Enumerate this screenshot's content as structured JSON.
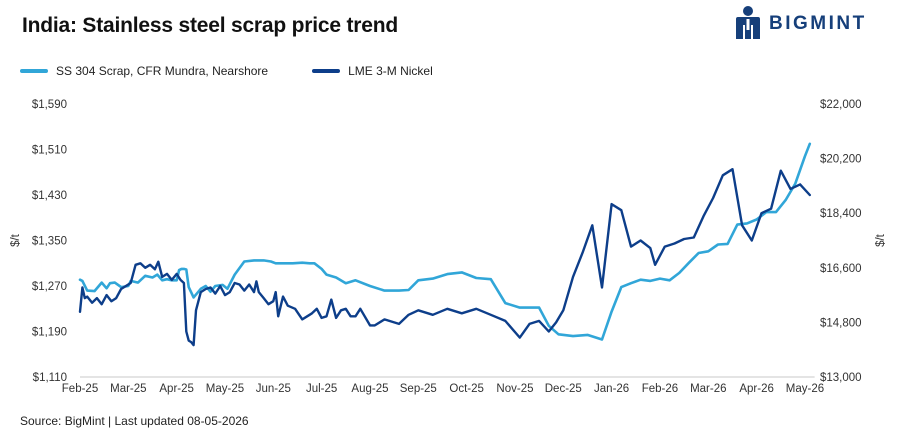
{
  "header": {
    "title": "India: Stainless steel scrap price trend",
    "logo_text": "BIGMINT",
    "logo_icon": "bigmint-person-icon"
  },
  "footer": {
    "source": "Source: BigMint | Last updated 08-05-2026"
  },
  "colors": {
    "scrap": "#31a6d8",
    "nickel": "#0d3e8a"
  },
  "chart_data": {
    "type": "line",
    "title": "India: Stainless steel scrap price trend",
    "x_tick_labels": [
      "Feb-25",
      "Mar-25",
      "Apr-25",
      "May-25",
      "Jun-25",
      "Jul-25",
      "Aug-25",
      "Sep-25",
      "Oct-25",
      "Nov-25",
      "Dec-25",
      "Jan-26",
      "Feb-26",
      "Mar-26",
      "Apr-26",
      "May-26"
    ],
    "x_range": [
      0,
      15.2
    ],
    "y_left": {
      "label": "$/t",
      "range": [
        1110,
        1590
      ],
      "ticks": [
        "$1,110",
        "$1,190",
        "$1,270",
        "$1,350",
        "$1,430",
        "$1,510",
        "$1,590"
      ]
    },
    "y_right": {
      "label": "$/t",
      "range": [
        13000,
        22000
      ],
      "ticks": [
        "$13,000",
        "$14,800",
        "$16,600",
        "$18,400",
        "$20,200",
        "$22,000"
      ]
    },
    "grid": false,
    "legend": "top-left",
    "series": [
      {
        "name": "SS 304 Scrap, CFR Mundra, Nearshore",
        "axis": "left",
        "x": [
          0,
          0.05,
          0.15,
          0.3,
          0.45,
          0.55,
          0.62,
          0.72,
          0.85,
          1.0,
          1.05,
          1.2,
          1.35,
          1.5,
          1.6,
          1.7,
          1.8,
          1.9,
          2.0,
          2.05,
          2.1,
          2.15,
          2.2,
          2.25,
          2.35,
          2.5,
          2.6,
          2.7,
          2.8,
          2.95,
          3.05,
          3.2,
          3.4,
          3.6,
          3.8,
          3.95,
          4.05,
          4.2,
          4.4,
          4.6,
          4.75,
          4.85,
          5.0,
          5.1,
          5.3,
          5.5,
          5.7,
          6.0,
          6.3,
          6.6,
          6.8,
          7.0,
          7.3,
          7.6,
          7.9,
          8.2,
          8.5,
          8.8,
          9.1,
          9.3,
          9.5,
          9.7,
          9.9,
          10.2,
          10.5,
          10.8,
          11.0,
          11.2,
          11.4,
          11.6,
          11.8,
          12.0,
          12.2,
          12.4,
          12.6,
          12.8,
          13.0,
          13.2,
          13.4,
          13.6,
          13.8,
          14.0,
          14.2,
          14.4,
          14.6,
          14.8,
          15.0,
          15.1
        ],
        "y": [
          1281,
          1279,
          1262,
          1261,
          1276,
          1266,
          1275,
          1276,
          1268,
          1270,
          1279,
          1276,
          1288,
          1285,
          1290,
          1280,
          1282,
          1280,
          1280,
          1298,
          1300,
          1300,
          1299,
          1268,
          1250,
          1265,
          1270,
          1260,
          1270,
          1272,
          1265,
          1290,
          1313,
          1315,
          1315,
          1313,
          1310,
          1310,
          1310,
          1311,
          1310,
          1310,
          1300,
          1290,
          1285,
          1275,
          1280,
          1270,
          1262,
          1262,
          1263,
          1280,
          1283,
          1291,
          1294,
          1284,
          1282,
          1240,
          1232,
          1232,
          1232,
          1200,
          1185,
          1182,
          1184,
          1176,
          1225,
          1268,
          1275,
          1281,
          1279,
          1283,
          1280,
          1293,
          1311,
          1328,
          1331,
          1343,
          1344,
          1378,
          1380,
          1387,
          1400,
          1400,
          1421,
          1450,
          1498,
          1520
        ]
      },
      {
        "name": "LME 3-M Nickel",
        "axis": "right",
        "x": [
          0,
          0.05,
          0.1,
          0.15,
          0.25,
          0.35,
          0.45,
          0.55,
          0.65,
          0.75,
          0.85,
          0.95,
          1.05,
          1.15,
          1.25,
          1.35,
          1.45,
          1.55,
          1.62,
          1.7,
          1.8,
          1.9,
          2.0,
          2.08,
          2.15,
          2.2,
          2.25,
          2.3,
          2.35,
          2.4,
          2.5,
          2.6,
          2.7,
          2.8,
          2.9,
          3.0,
          3.1,
          3.2,
          3.3,
          3.4,
          3.5,
          3.6,
          3.65,
          3.7,
          3.8,
          3.9,
          4.0,
          4.05,
          4.1,
          4.2,
          4.3,
          4.45,
          4.6,
          4.7,
          4.8,
          4.9,
          5.0,
          5.1,
          5.2,
          5.3,
          5.4,
          5.5,
          5.6,
          5.7,
          5.8,
          6.0,
          6.1,
          6.3,
          6.6,
          6.8,
          7.0,
          7.3,
          7.6,
          7.9,
          8.2,
          8.5,
          8.8,
          9.1,
          9.3,
          9.5,
          9.7,
          9.85,
          10.0,
          10.2,
          10.4,
          10.6,
          10.8,
          11.0,
          11.2,
          11.4,
          11.6,
          11.8,
          11.9,
          12.1,
          12.3,
          12.5,
          12.7,
          12.9,
          13.1,
          13.3,
          13.5,
          13.7,
          13.9,
          14.1,
          14.3,
          14.5,
          14.7,
          14.9,
          15.1
        ],
        "y": [
          15150,
          15950,
          15600,
          15650,
          15450,
          15600,
          15400,
          15700,
          15500,
          15600,
          15900,
          16000,
          16100,
          16700,
          16750,
          16600,
          16700,
          16550,
          16800,
          16300,
          16400,
          16200,
          16400,
          16200,
          16100,
          14500,
          14200,
          14150,
          14050,
          15200,
          15800,
          15900,
          15950,
          15750,
          16000,
          15700,
          15800,
          16100,
          16050,
          15850,
          16050,
          15800,
          16150,
          15800,
          15600,
          15400,
          15500,
          15800,
          15000,
          15650,
          15350,
          15250,
          14900,
          15000,
          15100,
          15250,
          14950,
          15000,
          15550,
          14950,
          15200,
          15250,
          15000,
          15000,
          15250,
          14700,
          14700,
          14900,
          14750,
          15050,
          15200,
          15050,
          15250,
          15100,
          15250,
          15050,
          14850,
          14300,
          14750,
          14850,
          14500,
          14800,
          15200,
          16300,
          17100,
          18000,
          15950,
          18700,
          18500,
          17300,
          17500,
          17250,
          16700,
          17300,
          17400,
          17550,
          17600,
          18300,
          18900,
          19650,
          19850,
          18000,
          17500,
          18400,
          18550,
          19800,
          19200,
          19350,
          19000
        ]
      }
    ]
  }
}
